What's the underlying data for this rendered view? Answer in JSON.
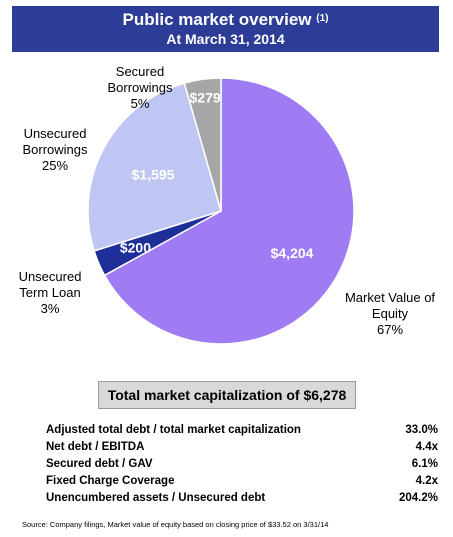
{
  "header": {
    "title": "Public market overview",
    "title_note": "(1)",
    "subtitle": "At March 31, 2014"
  },
  "chart_data": {
    "type": "pie",
    "title": "Public market overview",
    "slices": [
      {
        "label_lines": [
          "Market Value of",
          "Equity",
          "67%"
        ],
        "value": 4204,
        "value_label": "$4,204",
        "percent": "67%",
        "color": "#a07cf4"
      },
      {
        "label_lines": [
          "Unsecured",
          "Term Loan",
          "3%"
        ],
        "value": 200,
        "value_label": "$200",
        "percent": "3%",
        "color": "#1f2f9a"
      },
      {
        "label_lines": [
          "Unsecured",
          "Borrowings",
          "25%"
        ],
        "value": 1595,
        "value_label": "$1,595",
        "percent": "25%",
        "color": "#c0c6f4"
      },
      {
        "label_lines": [
          "Secured",
          "Borrowings",
          "5%"
        ],
        "value": 279,
        "value_label": "$279",
        "percent": "5%",
        "color": "#a6a6a6"
      }
    ]
  },
  "total": {
    "text": "Total market capitalization of $6,278"
  },
  "metrics": [
    {
      "label": "Adjusted total debt / total market capitalization",
      "value": "33.0%"
    },
    {
      "label": "Net debt / EBITDA",
      "value": "4.4x"
    },
    {
      "label": "Secured debt / GAV",
      "value": "6.1%"
    },
    {
      "label": "Fixed Charge Coverage",
      "value": "4.2x"
    },
    {
      "label": "Unencumbered assets / Unsecured debt",
      "value": "204.2%"
    }
  ],
  "source": "Source: Company filings, Market value of equity based on closing price of $33.52 on 3/31/14"
}
